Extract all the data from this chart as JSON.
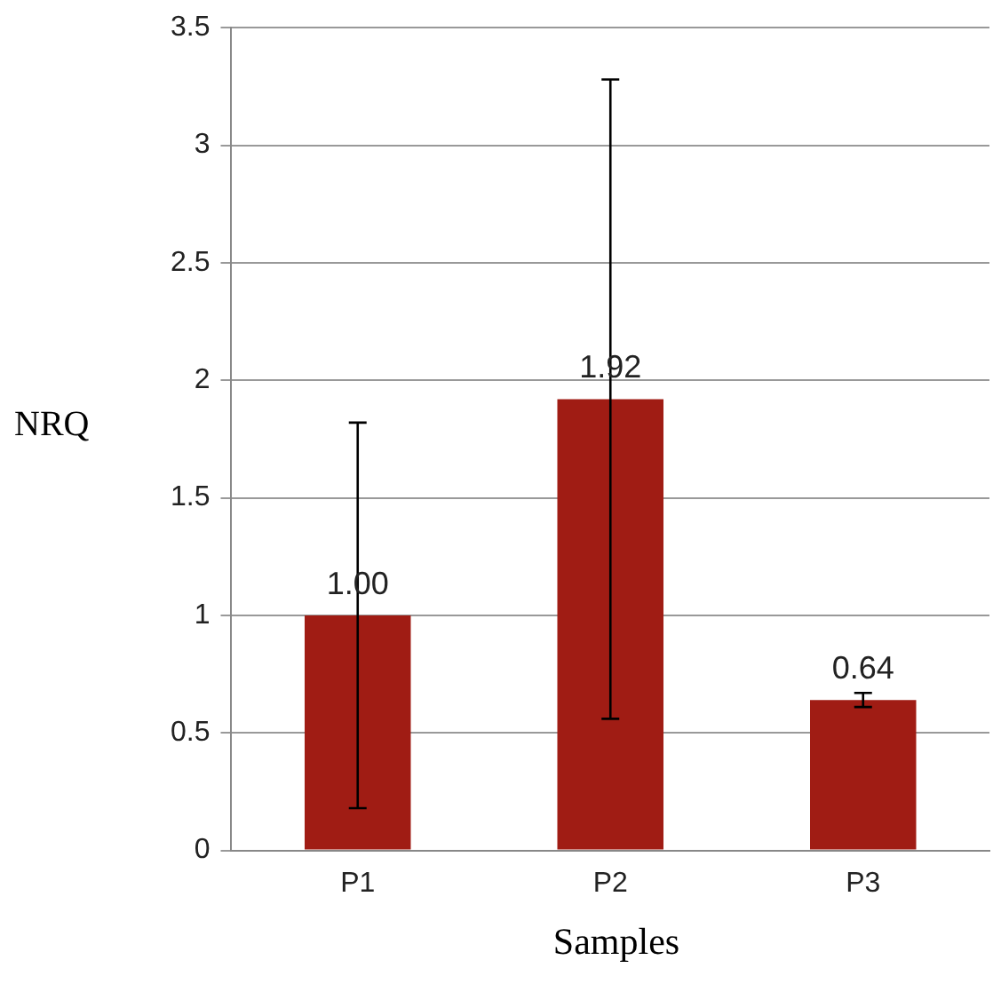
{
  "chart_data": {
    "type": "bar",
    "xlabel": "Samples",
    "ylabel": "NRQ",
    "categories": [
      "P1",
      "P2",
      "P3"
    ],
    "values": [
      1.0,
      1.92,
      0.64
    ],
    "value_labels": [
      "1.00",
      "1.92",
      "0.64"
    ],
    "errors": [
      0.82,
      1.36,
      0.03
    ],
    "color": "#a01c14",
    "ylim": [
      0,
      3.5
    ],
    "yticks": [
      0,
      0.5,
      1,
      1.5,
      2,
      2.5,
      3,
      3.5
    ],
    "grid": "y",
    "legend": false
  }
}
